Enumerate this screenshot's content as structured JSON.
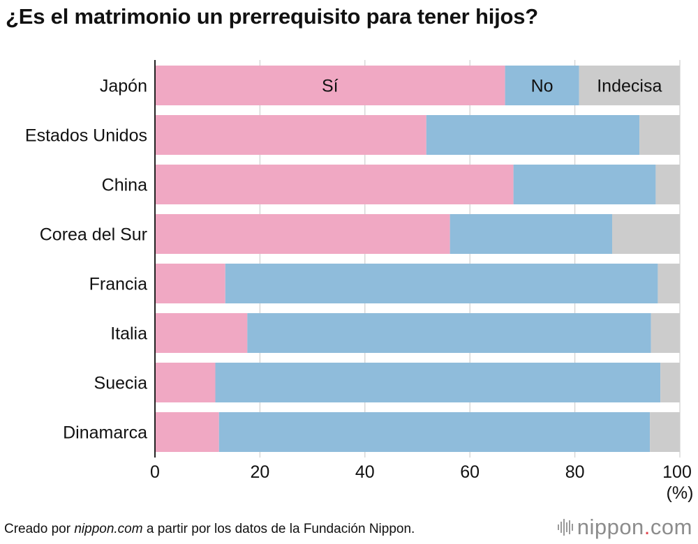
{
  "title": "¿Es el matrimonio un prerrequisito para tener hijos?",
  "footer": {
    "prefix": "Creado por ",
    "site": "nippon.com",
    "suffix": " a partir por los datos de la Fundación Nippon."
  },
  "brand": {
    "name": "nippon",
    "dot": ".",
    "tld": "com"
  },
  "chart_data": {
    "type": "bar",
    "orientation": "horizontal",
    "stacked": true,
    "categories": [
      "Japón",
      "Estados Unidos",
      "China",
      "Corea del Sur",
      "Francia",
      "Italia",
      "Suecia",
      "Dinamarca"
    ],
    "series": [
      {
        "name": "Sí",
        "color": "#f0a8c3",
        "values": [
          66.7,
          51.7,
          68.3,
          56.2,
          13.4,
          17.6,
          11.5,
          12.2
        ]
      },
      {
        "name": "No",
        "color": "#8fbcdb",
        "values": [
          14.1,
          40.6,
          27.1,
          30.9,
          82.4,
          76.9,
          84.8,
          82.1
        ]
      },
      {
        "name": "Indecisa",
        "color": "#cccccc",
        "values": [
          19.2,
          7.7,
          4.6,
          12.9,
          4.2,
          5.5,
          3.7,
          5.7
        ]
      }
    ],
    "xlim": [
      0,
      100
    ],
    "xticks": [
      "0",
      "20",
      "40",
      "60",
      "80",
      "100"
    ],
    "xunit": "(%)",
    "grid": true
  }
}
